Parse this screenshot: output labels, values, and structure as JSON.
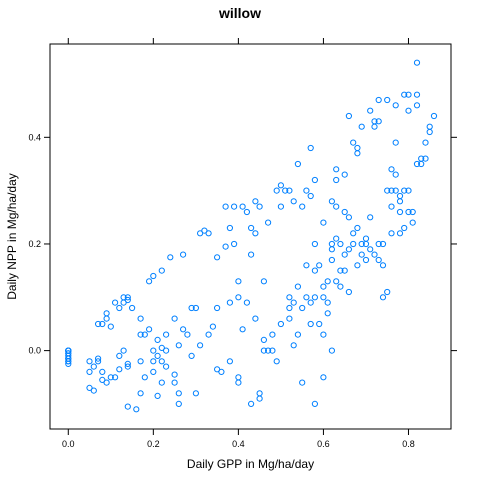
{
  "colors": {
    "point": "#0080ff",
    "axis": "#000000",
    "background": "#ffffff"
  },
  "chart_data": {
    "type": "scatter",
    "title": "willow",
    "xlabel": "Daily GPP in Mg/ha/day",
    "ylabel": "Daily NPP in Mg/ha/day",
    "xlim": [
      -0.043,
      0.9
    ],
    "ylim": [
      -0.147,
      0.575
    ],
    "xticks": [
      0.0,
      0.2,
      0.4,
      0.6,
      0.8
    ],
    "xtick_labels": [
      "0.0",
      "0.2",
      "0.4",
      "0.6",
      "0.8"
    ],
    "yticks": [
      0.0,
      0.2,
      0.4
    ],
    "ytick_labels": [
      "0.0",
      "0.2",
      "0.4"
    ],
    "grid": false,
    "legend": "none",
    "series": [
      {
        "marker": "open-circle",
        "points": [
          [
            0.0,
            0.0
          ],
          [
            0.0,
            0.0
          ],
          [
            0.0,
            0.0
          ],
          [
            0.0,
            -0.005
          ],
          [
            0.0,
            -0.01
          ],
          [
            0.0,
            -0.015
          ],
          [
            0.0,
            -0.02
          ],
          [
            0.0,
            -0.025
          ],
          [
            0.0,
            -0.005
          ],
          [
            0.0,
            -0.015
          ],
          [
            0.0,
            -0.02
          ],
          [
            0.0,
            0.0
          ],
          [
            0.05,
            -0.02
          ],
          [
            0.05,
            -0.04
          ],
          [
            0.05,
            -0.07
          ],
          [
            0.06,
            -0.03
          ],
          [
            0.06,
            -0.075
          ],
          [
            0.07,
            -0.015
          ],
          [
            0.07,
            -0.02
          ],
          [
            0.08,
            -0.04
          ],
          [
            0.08,
            -0.055
          ],
          [
            0.09,
            -0.06
          ],
          [
            0.08,
            0.05
          ],
          [
            0.09,
            0.06
          ],
          [
            0.1,
            0.045
          ],
          [
            0.1,
            -0.05
          ],
          [
            0.11,
            -0.05
          ],
          [
            0.12,
            -0.035
          ],
          [
            0.12,
            -0.01
          ],
          [
            0.12,
            0.08
          ],
          [
            0.13,
            0.09
          ],
          [
            0.13,
            0.0
          ],
          [
            0.14,
            0.1
          ],
          [
            0.14,
            0.095
          ],
          [
            0.14,
            -0.025
          ],
          [
            0.14,
            -0.03
          ],
          [
            0.14,
            -0.105
          ],
          [
            0.16,
            -0.11
          ],
          [
            0.17,
            0.03
          ],
          [
            0.17,
            -0.02
          ],
          [
            0.17,
            -0.08
          ],
          [
            0.18,
            0.03
          ],
          [
            0.18,
            -0.05
          ],
          [
            0.19,
            0.13
          ],
          [
            0.2,
            0.14
          ],
          [
            0.2,
            0.0
          ],
          [
            0.2,
            -0.02
          ],
          [
            0.21,
            -0.085
          ],
          [
            0.21,
            -0.01
          ],
          [
            0.22,
            -0.02
          ],
          [
            0.22,
            0.005
          ],
          [
            0.22,
            0.15
          ],
          [
            0.23,
            -0.03
          ],
          [
            0.23,
            0.0
          ],
          [
            0.24,
            0.175
          ],
          [
            0.25,
            -0.045
          ],
          [
            0.25,
            -0.06
          ],
          [
            0.26,
            -0.08
          ],
          [
            0.26,
            0.01
          ],
          [
            0.27,
            0.18
          ],
          [
            0.28,
            0.03
          ],
          [
            0.29,
            0.08
          ],
          [
            0.3,
            0.08
          ],
          [
            0.31,
            0.22
          ],
          [
            0.32,
            0.225
          ],
          [
            0.33,
            0.22
          ],
          [
            0.34,
            0.045
          ],
          [
            0.35,
            0.175
          ],
          [
            0.35,
            -0.035
          ],
          [
            0.37,
            0.195
          ],
          [
            0.37,
            0.27
          ],
          [
            0.38,
            0.23
          ],
          [
            0.38,
            0.09
          ],
          [
            0.39,
            0.27
          ],
          [
            0.39,
            0.2
          ],
          [
            0.4,
            0.1
          ],
          [
            0.4,
            0.13
          ],
          [
            0.4,
            -0.05
          ],
          [
            0.41,
            0.27
          ],
          [
            0.41,
            0.04
          ],
          [
            0.42,
            0.26
          ],
          [
            0.43,
            0.18
          ],
          [
            0.44,
            0.28
          ],
          [
            0.44,
            0.22
          ],
          [
            0.45,
            -0.08
          ],
          [
            0.45,
            -0.09
          ],
          [
            0.46,
            0.13
          ],
          [
            0.46,
            0.0
          ],
          [
            0.47,
            0.0
          ],
          [
            0.48,
            0.0
          ],
          [
            0.49,
            -0.02
          ],
          [
            0.5,
            0.27
          ],
          [
            0.51,
            0.3
          ],
          [
            0.52,
            0.3
          ],
          [
            0.52,
            0.1
          ],
          [
            0.53,
            0.09
          ],
          [
            0.54,
            0.35
          ],
          [
            0.54,
            0.03
          ],
          [
            0.55,
            -0.06
          ],
          [
            0.56,
            0.1
          ],
          [
            0.56,
            0.3
          ],
          [
            0.57,
            0.38
          ],
          [
            0.57,
            0.09
          ],
          [
            0.58,
            0.1
          ],
          [
            0.58,
            -0.1
          ],
          [
            0.59,
            0.05
          ],
          [
            0.6,
            0.03
          ],
          [
            0.6,
            -0.05
          ],
          [
            0.6,
            0.1
          ],
          [
            0.61,
            0.13
          ],
          [
            0.61,
            0.07
          ],
          [
            0.62,
            0.17
          ],
          [
            0.62,
            0.19
          ],
          [
            0.62,
            0.0
          ],
          [
            0.63,
            0.32
          ],
          [
            0.63,
            0.34
          ],
          [
            0.63,
            0.27
          ],
          [
            0.64,
            0.12
          ],
          [
            0.64,
            0.15
          ],
          [
            0.65,
            0.15
          ],
          [
            0.65,
            0.18
          ],
          [
            0.66,
            0.25
          ],
          [
            0.67,
            0.2
          ],
          [
            0.67,
            0.22
          ],
          [
            0.68,
            0.38
          ],
          [
            0.68,
            0.37
          ],
          [
            0.68,
            0.23
          ],
          [
            0.69,
            0.18
          ],
          [
            0.69,
            0.2
          ],
          [
            0.7,
            0.21
          ],
          [
            0.7,
            0.2
          ],
          [
            0.71,
            0.25
          ],
          [
            0.71,
            0.19
          ],
          [
            0.72,
            0.42
          ],
          [
            0.72,
            0.43
          ],
          [
            0.73,
            0.43
          ],
          [
            0.73,
            0.2
          ],
          [
            0.73,
            0.17
          ],
          [
            0.74,
            0.16
          ],
          [
            0.74,
            0.1
          ],
          [
            0.75,
            0.11
          ],
          [
            0.75,
            0.3
          ],
          [
            0.76,
            0.34
          ],
          [
            0.76,
            0.3
          ],
          [
            0.76,
            0.22
          ],
          [
            0.77,
            0.39
          ],
          [
            0.77,
            0.33
          ],
          [
            0.77,
            0.3
          ],
          [
            0.78,
            0.26
          ],
          [
            0.78,
            0.22
          ],
          [
            0.78,
            0.29
          ],
          [
            0.79,
            0.3
          ],
          [
            0.79,
            0.23
          ],
          [
            0.8,
            0.48
          ],
          [
            0.8,
            0.45
          ],
          [
            0.8,
            0.3
          ],
          [
            0.8,
            0.26
          ],
          [
            0.81,
            0.26
          ],
          [
            0.81,
            0.24
          ],
          [
            0.82,
            0.46
          ],
          [
            0.82,
            0.48
          ],
          [
            0.82,
            0.35
          ],
          [
            0.83,
            0.35
          ],
          [
            0.83,
            0.36
          ],
          [
            0.84,
            0.36
          ],
          [
            0.84,
            0.39
          ],
          [
            0.85,
            0.41
          ],
          [
            0.85,
            0.42
          ],
          [
            0.86,
            0.44
          ],
          [
            0.82,
            0.54
          ],
          [
            0.79,
            0.48
          ],
          [
            0.77,
            0.46
          ],
          [
            0.75,
            0.47
          ],
          [
            0.73,
            0.47
          ],
          [
            0.71,
            0.45
          ],
          [
            0.69,
            0.42
          ],
          [
            0.67,
            0.39
          ],
          [
            0.65,
            0.33
          ],
          [
            0.66,
            0.44
          ],
          [
            0.58,
            0.32
          ],
          [
            0.57,
            0.29
          ],
          [
            0.55,
            0.27
          ],
          [
            0.53,
            0.28
          ],
          [
            0.5,
            0.31
          ],
          [
            0.49,
            0.3
          ],
          [
            0.47,
            0.24
          ],
          [
            0.45,
            0.27
          ],
          [
            0.43,
            0.23
          ],
          [
            0.58,
            0.15
          ],
          [
            0.59,
            0.16
          ],
          [
            0.6,
            0.12
          ],
          [
            0.55,
            0.08
          ],
          [
            0.52,
            0.06
          ],
          [
            0.5,
            0.05
          ],
          [
            0.48,
            0.03
          ],
          [
            0.62,
            0.2
          ],
          [
            0.63,
            0.21
          ],
          [
            0.64,
            0.2
          ],
          [
            0.66,
            0.19
          ],
          [
            0.68,
            0.16
          ],
          [
            0.7,
            0.17
          ],
          [
            0.72,
            0.18
          ],
          [
            0.74,
            0.2
          ],
          [
            0.76,
            0.27
          ],
          [
            0.78,
            0.28
          ],
          [
            0.65,
            0.26
          ],
          [
            0.62,
            0.28
          ],
          [
            0.6,
            0.24
          ],
          [
            0.58,
            0.2
          ],
          [
            0.56,
            0.16
          ],
          [
            0.54,
            0.12
          ],
          [
            0.52,
            0.08
          ],
          [
            0.66,
            0.11
          ],
          [
            0.63,
            0.13
          ],
          [
            0.61,
            0.09
          ],
          [
            0.57,
            0.05
          ],
          [
            0.53,
            0.01
          ],
          [
            0.35,
            0.08
          ],
          [
            0.33,
            0.03
          ],
          [
            0.31,
            0.01
          ],
          [
            0.29,
            -0.01
          ],
          [
            0.27,
            0.04
          ],
          [
            0.25,
            0.06
          ],
          [
            0.23,
            0.03
          ],
          [
            0.21,
            0.02
          ],
          [
            0.19,
            0.04
          ],
          [
            0.17,
            0.06
          ],
          [
            0.15,
            0.08
          ],
          [
            0.13,
            0.1
          ],
          [
            0.11,
            0.09
          ],
          [
            0.09,
            0.07
          ],
          [
            0.07,
            0.05
          ],
          [
            0.42,
            0.09
          ],
          [
            0.44,
            0.06
          ],
          [
            0.46,
            0.02
          ],
          [
            0.38,
            -0.02
          ],
          [
            0.36,
            -0.04
          ],
          [
            0.4,
            -0.06
          ],
          [
            0.43,
            -0.1
          ],
          [
            0.3,
            -0.08
          ],
          [
            0.26,
            -0.1
          ],
          [
            0.22,
            -0.06
          ],
          [
            0.2,
            -0.04
          ]
        ]
      }
    ]
  }
}
